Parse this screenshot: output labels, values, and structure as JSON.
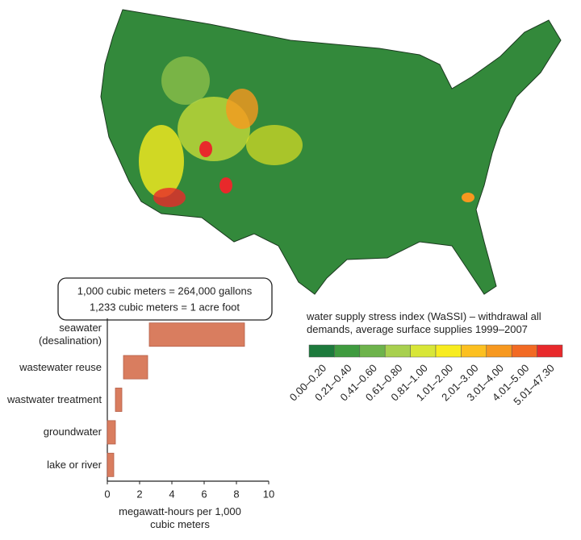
{
  "chart_data": [
    {
      "type": "map",
      "title": "water supply stress index (WaSSI) – withdrawal all demands, average surface supplies 1999–2007",
      "legend": [
        {
          "label": "0.00–0.20",
          "color": "#1d7a3c"
        },
        {
          "label": "0.21–0.40",
          "color": "#3f9b3f"
        },
        {
          "label": "0.41–0.60",
          "color": "#6db34b"
        },
        {
          "label": "0.61–0.80",
          "color": "#a8d04e"
        },
        {
          "label": "0.81–1.00",
          "color": "#d8e637"
        },
        {
          "label": "1.01–2.00",
          "color": "#f8ec1f"
        },
        {
          "label": "2.01–3.00",
          "color": "#fcc020"
        },
        {
          "label": "3.01–4.00",
          "color": "#f7981f"
        },
        {
          "label": "4.01–5.00",
          "color": "#f26a23"
        },
        {
          "label": "5.01–47.30",
          "color": "#e8292b"
        }
      ]
    },
    {
      "type": "range-bar",
      "annotations": [
        "1,000 cubic meters = 264,000 gallons",
        "1,233 cubic meters = 1 acre foot"
      ],
      "categories": [
        "seawater (desalination)",
        "wastewater reuse",
        "wastwater treatment",
        "groundwater",
        "lake or river"
      ],
      "low": [
        2.6,
        1.0,
        0.5,
        0,
        0
      ],
      "high": [
        8.5,
        2.5,
        0.9,
        0.5,
        0.4
      ],
      "color": "#d97d5f",
      "xlabel": "megawatt-hours per 1,000 cubic meters",
      "xlim": [
        0,
        10
      ],
      "xticks": [
        0,
        2,
        4,
        6,
        8,
        10
      ]
    }
  ]
}
